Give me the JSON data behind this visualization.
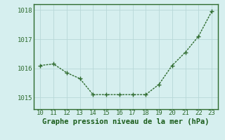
{
  "x": [
    10,
    11,
    12,
    13,
    14,
    15,
    16,
    17,
    18,
    19,
    20,
    21,
    22,
    23
  ],
  "y": [
    1016.1,
    1016.15,
    1015.85,
    1015.65,
    1015.1,
    1015.1,
    1015.1,
    1015.1,
    1015.1,
    1015.45,
    1016.1,
    1016.55,
    1017.1,
    1017.95
  ],
  "line_color": "#2d6a2d",
  "marker_color": "#2d6a2d",
  "bg_color": "#d6efef",
  "plot_bg_color": "#d6efef",
  "grid_color": "#b8d8d8",
  "axis_color": "#2d6a2d",
  "label_color": "#1a5c1a",
  "tick_color": "#2d6a2d",
  "xlabel": "Graphe pression niveau de la mer (hPa)",
  "ylim": [
    1014.6,
    1018.2
  ],
  "yticks": [
    1015,
    1016,
    1017,
    1018
  ],
  "xticks": [
    10,
    11,
    12,
    13,
    14,
    15,
    16,
    17,
    18,
    19,
    20,
    21,
    22,
    23
  ],
  "xlabel_fontsize": 7.5,
  "tick_fontsize": 6.5,
  "line_width": 1.0,
  "marker_size": 4.0,
  "xlim_left": 9.5,
  "xlim_right": 23.5
}
